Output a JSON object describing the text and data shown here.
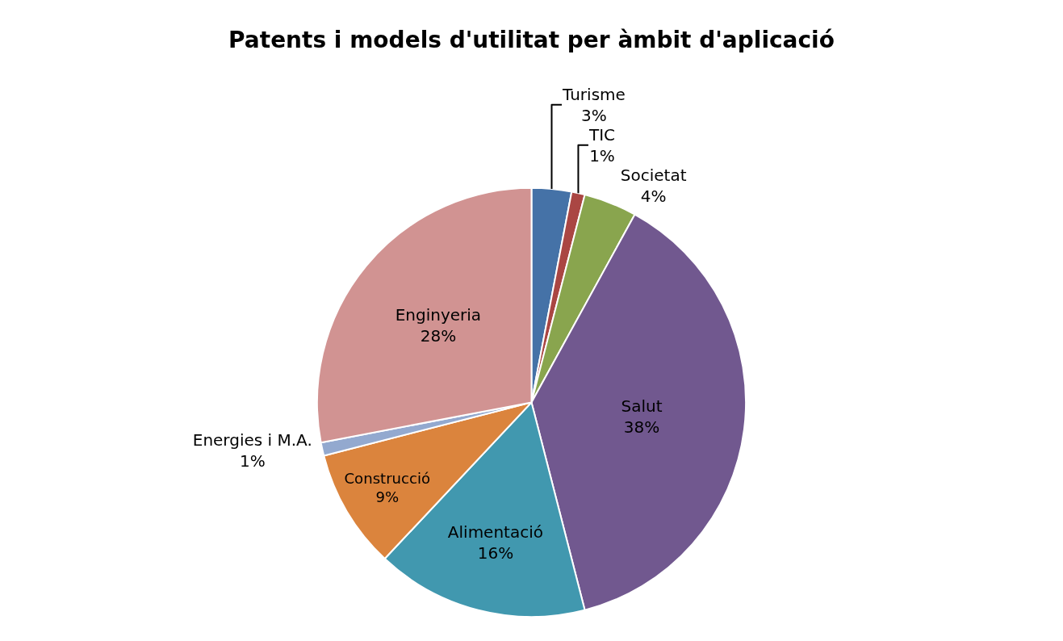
{
  "chart_data": {
    "type": "pie",
    "title": "Patents i models d'utilitat per àmbit d'aplicació",
    "categories": [
      "Turisme",
      "TIC",
      "Societat",
      "Salut",
      "Alimentació",
      "Construcció",
      "Energies i M.A.",
      "Enginyeria"
    ],
    "values": [
      3,
      1,
      4,
      38,
      16,
      9,
      1,
      28
    ],
    "value_labels": [
      "3%",
      "1%",
      "4%",
      "38%",
      "16%",
      "9%",
      "1%",
      "28%"
    ],
    "colors": [
      "#4572a7",
      "#aa4643",
      "#89a54e",
      "#71588f",
      "#4198af",
      "#db843d",
      "#93a9cf",
      "#d19392"
    ],
    "legend": false
  }
}
